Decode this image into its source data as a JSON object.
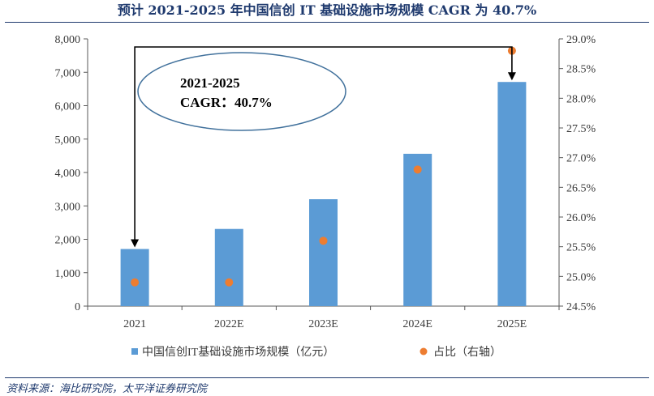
{
  "page": {
    "title": "预计 2021-2025 年中国信创 IT 基础设施市场规模 CAGR 为 40.7%",
    "source": "资料来源：海比研究院，太平洋证券研究院"
  },
  "chart_data": {
    "type": "bar",
    "categories": [
      "2021",
      "2022E",
      "2023E",
      "2024E",
      "2025E"
    ],
    "series": [
      {
        "name": "中国信创IT基础设施市场规模（亿元）",
        "type": "bar",
        "axis": "left",
        "values": [
          1710,
          2310,
          3200,
          4560,
          6710
        ],
        "color": "#5b9bd5"
      },
      {
        "name": "占比（右轴）",
        "type": "scatter",
        "axis": "right",
        "values": [
          24.9,
          24.9,
          25.6,
          26.8,
          28.8
        ],
        "color": "#ed7d31"
      }
    ],
    "left_axis": {
      "ylim": [
        0,
        8000
      ],
      "ticks": [
        "0",
        "1,000",
        "2,000",
        "3,000",
        "4,000",
        "5,000",
        "6,000",
        "7,000",
        "8,000"
      ]
    },
    "right_axis": {
      "ylim": [
        24.5,
        29.0
      ],
      "ticks": [
        "24.5%",
        "25.0%",
        "25.5%",
        "26.0%",
        "26.5%",
        "27.0%",
        "27.5%",
        "28.0%",
        "28.5%",
        "29.0%"
      ]
    },
    "annotation": {
      "line1": "2021-2025",
      "line2": "CAGR：40.7%",
      "from": "2021",
      "to": "2025E"
    },
    "legend": {
      "placement": "bottom"
    },
    "grid": false
  }
}
